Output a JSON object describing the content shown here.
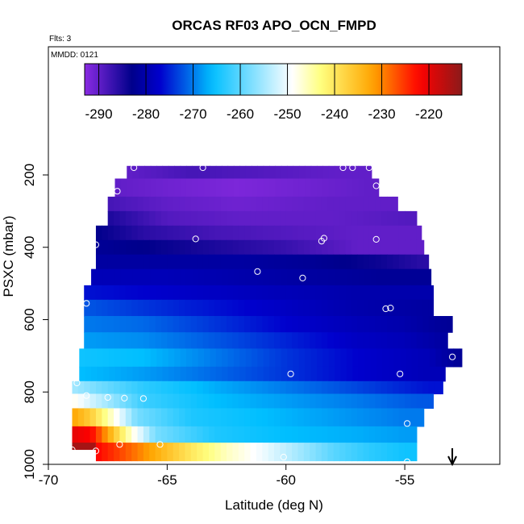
{
  "chart_data": {
    "type": "heatmap",
    "title": "ORCAS RF03 APO_OCN_FMPD",
    "note_flights": "Flts: 3",
    "note_mmdd": "MMDD: 0121",
    "xlabel": "Latitude (deg N)",
    "ylabel": "PSXC (mbar)",
    "xlim": [
      -70,
      -51
    ],
    "ylim": [
      1000,
      100
    ],
    "x_ticks": [
      -70,
      -65,
      -60,
      -55
    ],
    "x_tick_labels": [
      "-70",
      "-65",
      "-60",
      "-55"
    ],
    "y_ticks": [
      200,
      400,
      600,
      800,
      1000
    ],
    "y_tick_labels": [
      "200",
      "400",
      "600",
      "800",
      "1000"
    ],
    "colorbar": {
      "range": [
        -293,
        -213
      ],
      "ticks": [
        -290,
        -280,
        -270,
        -260,
        -250,
        -240,
        -230,
        -220
      ],
      "tick_labels": [
        "-290",
        "-280",
        "-270",
        "-260",
        "-250",
        "-240",
        "-230",
        "-220"
      ],
      "colors": [
        "#8a2be2",
        "#00008b",
        "#0000cd",
        "#00bfff",
        "#ffffff",
        "#ffff80",
        "#ffa500",
        "#ff0000",
        "#8b1a1a"
      ]
    },
    "grid": false,
    "rows": [
      {
        "p_top": 175,
        "p_bot": 210,
        "x0": -66.7,
        "x1": -56.4,
        "v": [
          [
            -66.7,
            -290
          ],
          [
            -64,
            -288
          ],
          [
            -61,
            -289
          ],
          [
            -58,
            -290
          ]
        ]
      },
      {
        "p_top": 210,
        "p_bot": 260,
        "x0": -67.2,
        "x1": -56.1,
        "v": [
          [
            -67.2,
            -290
          ],
          [
            -65,
            -291
          ],
          [
            -62,
            -292
          ],
          [
            -59,
            -291
          ],
          [
            -56.5,
            -290
          ]
        ]
      },
      {
        "p_top": 260,
        "p_bot": 300,
        "x0": -67.5,
        "x1": -55.3,
        "v": [
          [
            -67.5,
            -288
          ],
          [
            -65,
            -290
          ],
          [
            -62,
            -291
          ],
          [
            -58,
            -290
          ],
          [
            -55.5,
            -290
          ]
        ]
      },
      {
        "p_top": 300,
        "p_bot": 340,
        "x0": -67.5,
        "x1": -54.5,
        "v": [
          [
            -67.5,
            -285
          ],
          [
            -65,
            -289
          ],
          [
            -62,
            -290
          ],
          [
            -58,
            -290
          ],
          [
            -54.8,
            -289
          ]
        ]
      },
      {
        "p_top": 340,
        "p_bot": 380,
        "x0": -68.0,
        "x1": -54.3,
        "v": [
          [
            -68,
            -283
          ],
          [
            -66,
            -286
          ],
          [
            -63,
            -288
          ],
          [
            -60,
            -289
          ],
          [
            -57,
            -290
          ],
          [
            -54.5,
            -290
          ]
        ]
      },
      {
        "p_top": 380,
        "p_bot": 420,
        "x0": -68.0,
        "x1": -54.2,
        "v": [
          [
            -68,
            -282
          ],
          [
            -66,
            -283
          ],
          [
            -63,
            -285
          ],
          [
            -60,
            -287
          ],
          [
            -57,
            -290
          ],
          [
            -54.5,
            -290
          ]
        ]
      },
      {
        "p_top": 420,
        "p_bot": 460,
        "x0": -68.0,
        "x1": -54.0,
        "v": [
          [
            -68,
            -281
          ],
          [
            -65,
            -281
          ],
          [
            -62,
            -281
          ],
          [
            -59,
            -282
          ],
          [
            -56,
            -284
          ],
          [
            -54.3,
            -286
          ]
        ]
      },
      {
        "p_top": 460,
        "p_bot": 505,
        "x0": -68.2,
        "x1": -53.9,
        "v": [
          [
            -68.2,
            -279
          ],
          [
            -65,
            -279
          ],
          [
            -62,
            -280
          ],
          [
            -59,
            -281
          ],
          [
            -56,
            -282
          ],
          [
            -54,
            -282
          ]
        ]
      },
      {
        "p_top": 505,
        "p_bot": 545,
        "x0": -68.5,
        "x1": -53.8,
        "v": [
          [
            -68.5,
            -276
          ],
          [
            -66,
            -277
          ],
          [
            -63,
            -278
          ],
          [
            -60,
            -279
          ],
          [
            -57,
            -280
          ],
          [
            -54,
            -280
          ]
        ]
      },
      {
        "p_top": 545,
        "p_bot": 590,
        "x0": -68.5,
        "x1": -53.8,
        "v": [
          [
            -68.5,
            -272
          ],
          [
            -66,
            -274
          ],
          [
            -63,
            -276
          ],
          [
            -60,
            -278
          ],
          [
            -57,
            -280
          ],
          [
            -54,
            -281
          ]
        ]
      },
      {
        "p_top": 590,
        "p_bot": 635,
        "x0": -68.5,
        "x1": -53.0,
        "v": [
          [
            -68.5,
            -270
          ],
          [
            -66,
            -271
          ],
          [
            -63,
            -274
          ],
          [
            -60,
            -277
          ],
          [
            -57,
            -279
          ],
          [
            -55,
            -280
          ],
          [
            -53.2,
            -282
          ]
        ]
      },
      {
        "p_top": 635,
        "p_bot": 680,
        "x0": -68.5,
        "x1": -53.2,
        "v": [
          [
            -68.5,
            -268
          ],
          [
            -66,
            -269
          ],
          [
            -63,
            -272
          ],
          [
            -60,
            -275
          ],
          [
            -57,
            -278
          ],
          [
            -55,
            -279
          ],
          [
            -53.4,
            -281
          ]
        ]
      },
      {
        "p_top": 680,
        "p_bot": 730,
        "x0": -68.7,
        "x1": -52.6,
        "v": [
          [
            -68.7,
            -265
          ],
          [
            -66,
            -266
          ],
          [
            -63,
            -270
          ],
          [
            -60,
            -274
          ],
          [
            -57,
            -277
          ],
          [
            -54,
            -279
          ],
          [
            -52.8,
            -282
          ]
        ]
      },
      {
        "p_top": 730,
        "p_bot": 770,
        "x0": -68.7,
        "x1": -53.3,
        "v": [
          [
            -68.7,
            -266
          ],
          [
            -66,
            -268
          ],
          [
            -63,
            -271
          ],
          [
            -60,
            -274
          ],
          [
            -57,
            -277
          ],
          [
            -54,
            -279
          ]
        ]
      },
      {
        "p_top": 770,
        "p_bot": 805,
        "x0": -69.0,
        "x1": -53.4,
        "v": [
          [
            -69,
            -255
          ],
          [
            -68,
            -258
          ],
          [
            -66,
            -263
          ],
          [
            -63,
            -267
          ],
          [
            -60,
            -270
          ],
          [
            -57,
            -273
          ],
          [
            -54,
            -276
          ]
        ]
      },
      {
        "p_top": 805,
        "p_bot": 845,
        "x0": -69.0,
        "x1": -53.8,
        "v": [
          [
            -69,
            -248
          ],
          [
            -68,
            -253
          ],
          [
            -66,
            -262
          ],
          [
            -63,
            -266
          ],
          [
            -60,
            -268
          ],
          [
            -57,
            -270
          ],
          [
            -54.5,
            -272
          ]
        ]
      },
      {
        "p_top": 845,
        "p_bot": 895,
        "x0": -69.0,
        "x1": -54.2,
        "v": [
          [
            -69,
            -232
          ],
          [
            -68.2,
            -237
          ],
          [
            -67.2,
            -248
          ],
          [
            -66.3,
            -258
          ],
          [
            -64,
            -264
          ],
          [
            -61,
            -266
          ],
          [
            -58,
            -268
          ],
          [
            -55,
            -270
          ]
        ]
      },
      {
        "p_top": 895,
        "p_bot": 940,
        "x0": -69.0,
        "x1": -54.5,
        "v": [
          [
            -69,
            -220
          ],
          [
            -68.2,
            -222
          ],
          [
            -67.3,
            -235
          ],
          [
            -66.5,
            -247
          ],
          [
            -65.5,
            -258
          ],
          [
            -63,
            -264
          ],
          [
            -60,
            -266
          ],
          [
            -57,
            -267
          ],
          [
            -55,
            -268
          ]
        ]
      },
      {
        "p_top": 940,
        "p_bot": 990,
        "x0": -68.0,
        "x1": -54.5,
        "v": [
          [
            -68,
            -222
          ],
          [
            -67,
            -226
          ],
          [
            -65.5,
            -233
          ],
          [
            -64,
            -240
          ],
          [
            -62.5,
            -246
          ],
          [
            -61,
            -250
          ],
          [
            -59.5,
            -255
          ],
          [
            -58,
            -260
          ],
          [
            -56.5,
            -263
          ],
          [
            -55,
            -265
          ]
        ]
      }
    ],
    "heatmap_extra": {
      "p_top": 940,
      "p_bot": 960,
      "x0": -69.0,
      "x1": -68.0,
      "v": [
        [
          -69,
          -215
        ]
      ]
    },
    "points": [
      [
        -66.4,
        180
      ],
      [
        -63.5,
        180
      ],
      [
        -57.6,
        180
      ],
      [
        -57.2,
        180
      ],
      [
        -56.5,
        180
      ],
      [
        -56.2,
        230
      ],
      [
        -67.1,
        245
      ],
      [
        -68.0,
        393
      ],
      [
        -63.8,
        377
      ],
      [
        -58.5,
        383
      ],
      [
        -58.4,
        375
      ],
      [
        -56.2,
        378
      ],
      [
        -61.2,
        467
      ],
      [
        -59.3,
        485
      ],
      [
        -68.4,
        555
      ],
      [
        -55.8,
        570
      ],
      [
        -55.6,
        568
      ],
      [
        -53.0,
        703
      ],
      [
        -59.8,
        750
      ],
      [
        -55.2,
        750
      ],
      [
        -68.8,
        775
      ],
      [
        -68.4,
        810
      ],
      [
        -67.5,
        815
      ],
      [
        -66.8,
        817
      ],
      [
        -66.0,
        818
      ],
      [
        -54.9,
        887
      ],
      [
        -67.0,
        945
      ],
      [
        -65.3,
        945
      ],
      [
        -68.0,
        963
      ],
      [
        -69.0,
        960
      ],
      [
        -60.1,
        980
      ],
      [
        -54.9,
        993
      ]
    ],
    "arrow_x": -53.0
  }
}
